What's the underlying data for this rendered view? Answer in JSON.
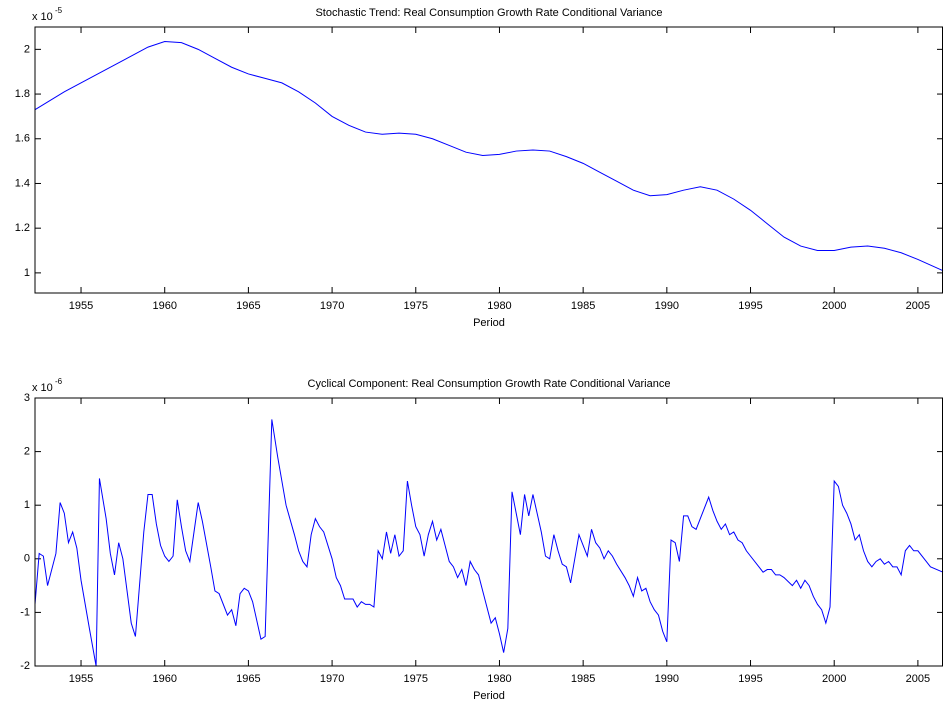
{
  "chart_data": [
    {
      "type": "line",
      "title": "Stochastic Trend: Real Consumption Growth Rate Conditional Variance",
      "x_label": "Period",
      "y_multiplier": "x 10",
      "y_exponent": "-5",
      "xlim": [
        1952.25,
        2006.5
      ],
      "xticks": [
        1955,
        1960,
        1965,
        1970,
        1975,
        1980,
        1985,
        1990,
        1995,
        2000,
        2005
      ],
      "ylim": [
        0.91,
        2.1
      ],
      "yticks": [
        1,
        1.2,
        1.4,
        1.6,
        1.8,
        2
      ],
      "grid": false,
      "series": [
        {
          "color": "#0000ff",
          "x": [
            1952.25,
            1954,
            1956,
            1958,
            1959,
            1960,
            1961,
            1962,
            1963,
            1964,
            1965,
            1966,
            1967,
            1968,
            1969,
            1970,
            1971,
            1972,
            1973,
            1974,
            1975,
            1976,
            1977,
            1978,
            1979,
            1980,
            1981,
            1982,
            1983,
            1984,
            1985,
            1986,
            1987,
            1988,
            1989,
            1990,
            1991,
            1992,
            1993,
            1994,
            1995,
            1996,
            1997,
            1998,
            1999,
            2000,
            2001,
            2002,
            2003,
            2004,
            2005,
            2006.5
          ],
          "values": [
            1.73,
            1.81,
            1.89,
            1.97,
            2.01,
            2.035,
            2.03,
            2.0,
            1.96,
            1.92,
            1.89,
            1.87,
            1.85,
            1.81,
            1.76,
            1.7,
            1.66,
            1.63,
            1.62,
            1.625,
            1.62,
            1.6,
            1.57,
            1.54,
            1.525,
            1.53,
            1.545,
            1.55,
            1.545,
            1.52,
            1.49,
            1.45,
            1.41,
            1.37,
            1.345,
            1.35,
            1.37,
            1.385,
            1.37,
            1.33,
            1.28,
            1.22,
            1.16,
            1.12,
            1.1,
            1.1,
            1.115,
            1.12,
            1.11,
            1.09,
            1.06,
            1.01
          ]
        }
      ]
    },
    {
      "type": "line",
      "title": "Cyclical Component: Real Consumption Growth Rate Conditional Variance",
      "x_label": "Period",
      "y_multiplier": "x 10",
      "y_exponent": "-6",
      "xlim": [
        1952.25,
        2006.5
      ],
      "xticks": [
        1955,
        1960,
        1965,
        1970,
        1975,
        1980,
        1985,
        1990,
        1995,
        2000,
        2005
      ],
      "ylim": [
        -2,
        3
      ],
      "yticks": [
        -2,
        -1,
        0,
        1,
        2,
        3
      ],
      "grid": false,
      "series": [
        {
          "color": "#0000ff",
          "x": [
            1952.25,
            1952.5,
            1952.75,
            1953.0,
            1953.5,
            1953.75,
            1954.0,
            1954.25,
            1954.5,
            1954.75,
            1955.0,
            1955.5,
            1955.9,
            1956.1,
            1956.5,
            1956.75,
            1957.0,
            1957.25,
            1957.5,
            1958.0,
            1958.25,
            1958.75,
            1959.0,
            1959.25,
            1959.5,
            1959.75,
            1960.0,
            1960.25,
            1960.5,
            1960.75,
            1961.0,
            1961.25,
            1961.5,
            1961.75,
            1962.0,
            1962.25,
            1962.75,
            1963.0,
            1963.25,
            1963.75,
            1964.0,
            1964.25,
            1964.5,
            1964.75,
            1965.0,
            1965.25,
            1965.75,
            1966.0,
            1966.4,
            1966.75,
            1967.25,
            1967.75,
            1968.0,
            1968.25,
            1968.5,
            1968.75,
            1969.0,
            1969.25,
            1969.5,
            1970.0,
            1970.25,
            1970.5,
            1970.75,
            1971.0,
            1971.25,
            1971.5,
            1971.75,
            1972.0,
            1972.25,
            1972.5,
            1972.75,
            1973.0,
            1973.25,
            1973.5,
            1973.75,
            1974.0,
            1974.25,
            1974.5,
            1974.75,
            1975.0,
            1975.25,
            1975.5,
            1975.75,
            1976.0,
            1976.25,
            1976.5,
            1976.75,
            1977.0,
            1977.25,
            1977.5,
            1977.75,
            1978.0,
            1978.25,
            1978.5,
            1978.75,
            1979.0,
            1979.5,
            1979.75,
            1980.0,
            1980.25,
            1980.5,
            1980.75,
            1981.0,
            1981.25,
            1981.5,
            1981.75,
            1982.0,
            1982.5,
            1982.75,
            1983.0,
            1983.25,
            1983.5,
            1983.75,
            1984.0,
            1984.25,
            1984.75,
            1985.0,
            1985.25,
            1985.5,
            1985.75,
            1986.0,
            1986.25,
            1986.5,
            1986.75,
            1987.0,
            1987.5,
            1987.75,
            1988.0,
            1988.25,
            1988.5,
            1988.75,
            1989.0,
            1989.25,
            1989.5,
            1989.75,
            1990.0,
            1990.25,
            1990.5,
            1990.75,
            1991.0,
            1991.25,
            1991.5,
            1991.75,
            1992.0,
            1992.5,
            1992.75,
            1993.0,
            1993.25,
            1993.5,
            1993.75,
            1994.0,
            1994.25,
            1994.5,
            1994.75,
            1995.0,
            1995.5,
            1995.75,
            1996.0,
            1996.25,
            1996.5,
            1996.75,
            1997.0,
            1997.5,
            1997.75,
            1998.0,
            1998.25,
            1998.5,
            1998.75,
            1999.0,
            1999.25,
            1999.5,
            1999.75,
            2000.0,
            2000.25,
            2000.5,
            2000.75,
            2001.0,
            2001.25,
            2001.5,
            2001.75,
            2002.0,
            2002.25,
            2002.5,
            2002.75,
            2003.0,
            2003.25,
            2003.5,
            2003.75,
            2004.0,
            2004.25,
            2004.5,
            2004.75,
            2005.0,
            2005.5,
            2005.75,
            2006.5
          ],
          "values": [
            -0.85,
            0.1,
            0.05,
            -0.5,
            0.1,
            1.05,
            0.85,
            0.3,
            0.5,
            0.2,
            -0.4,
            -1.3,
            -2.0,
            1.5,
            0.75,
            0.1,
            -0.3,
            0.3,
            0.0,
            -1.2,
            -1.45,
            0.5,
            1.2,
            1.2,
            0.65,
            0.25,
            0.05,
            -0.05,
            0.05,
            1.1,
            0.6,
            0.15,
            -0.05,
            0.5,
            1.05,
            0.7,
            -0.15,
            -0.6,
            -0.65,
            -1.05,
            -0.95,
            -1.25,
            -0.65,
            -0.55,
            -0.6,
            -0.8,
            -1.5,
            -1.45,
            2.6,
            1.9,
            1.0,
            0.45,
            0.15,
            -0.05,
            -0.15,
            0.45,
            0.75,
            0.6,
            0.5,
            0.0,
            -0.35,
            -0.5,
            -0.75,
            -0.75,
            -0.75,
            -0.9,
            -0.8,
            -0.85,
            -0.85,
            -0.9,
            0.15,
            0.0,
            0.5,
            0.1,
            0.45,
            0.05,
            0.15,
            1.45,
            1.0,
            0.6,
            0.45,
            0.05,
            0.45,
            0.7,
            0.35,
            0.55,
            0.25,
            -0.05,
            -0.15,
            -0.35,
            -0.2,
            -0.5,
            -0.05,
            -0.2,
            -0.3,
            -0.6,
            -1.2,
            -1.1,
            -1.4,
            -1.75,
            -1.3,
            1.25,
            0.85,
            0.45,
            1.2,
            0.8,
            1.2,
            0.5,
            0.05,
            0.0,
            0.45,
            0.15,
            -0.1,
            -0.15,
            -0.45,
            0.45,
            0.25,
            0.05,
            0.55,
            0.3,
            0.2,
            0.0,
            0.15,
            0.05,
            -0.1,
            -0.35,
            -0.5,
            -0.7,
            -0.35,
            -0.6,
            -0.55,
            -0.8,
            -0.95,
            -1.05,
            -1.35,
            -1.55,
            0.35,
            0.3,
            -0.05,
            0.8,
            0.8,
            0.6,
            0.55,
            0.75,
            1.15,
            0.9,
            0.7,
            0.55,
            0.65,
            0.45,
            0.5,
            0.35,
            0.3,
            0.15,
            0.05,
            -0.15,
            -0.25,
            -0.2,
            -0.2,
            -0.3,
            -0.3,
            -0.35,
            -0.5,
            -0.4,
            -0.55,
            -0.4,
            -0.5,
            -0.7,
            -0.85,
            -0.95,
            -1.2,
            -0.9,
            1.45,
            1.35,
            1.0,
            0.85,
            0.65,
            0.35,
            0.45,
            0.15,
            -0.05,
            -0.15,
            -0.05,
            0.0,
            -0.1,
            -0.05,
            -0.15,
            -0.15,
            -0.3,
            0.15,
            0.25,
            0.15,
            0.15,
            -0.05,
            -0.15,
            -0.25
          ]
        }
      ]
    }
  ]
}
